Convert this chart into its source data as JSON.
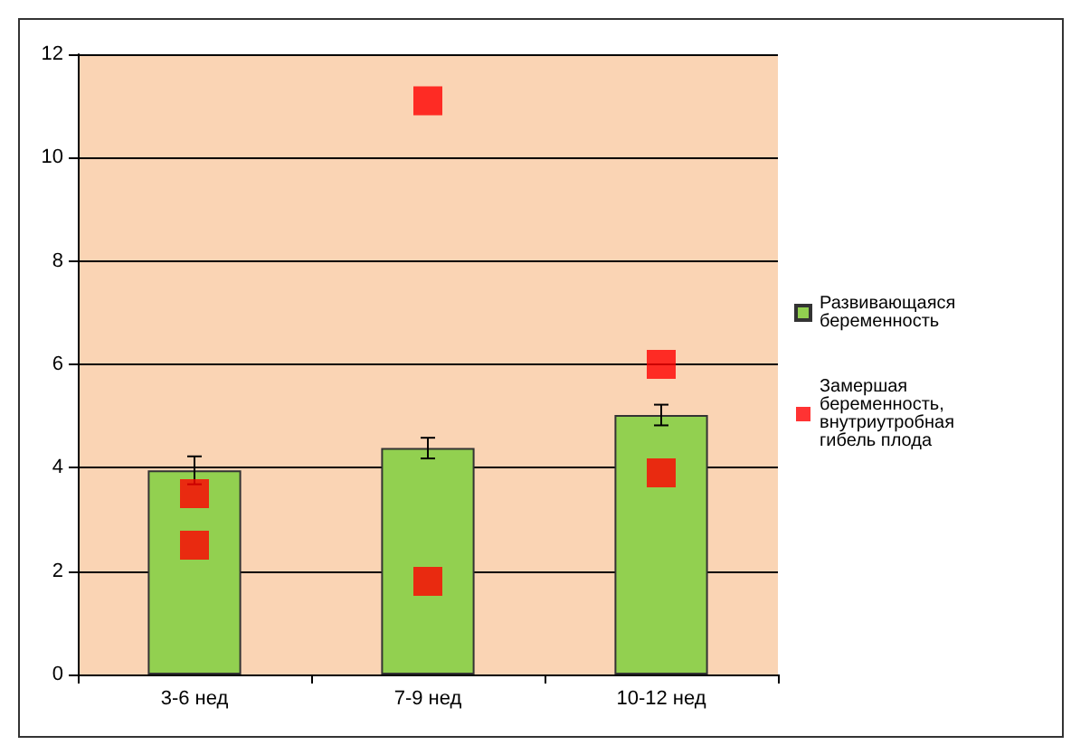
{
  "chart_data": {
    "type": "bar",
    "categories": [
      "3-6 нед",
      "7-9 нед",
      "10-12 нед"
    ],
    "series": [
      {
        "name": "Развивающаяся беременность",
        "color": "#92d050",
        "values": [
          3.95,
          4.38,
          5.02
        ],
        "errors": [
          0.27,
          0.2,
          0.2
        ]
      },
      {
        "type": "scatter",
        "name": "Замершая беременность, внутриутробная гибель плода",
        "color": "#ff0000",
        "x": [
          "3-6 нед",
          "3-6 нед",
          "7-9 нед",
          "7-9 нед",
          "10-12 нед",
          "10-12 нед"
        ],
        "values": [
          3.5,
          2.5,
          11.1,
          1.8,
          6.0,
          3.9
        ],
        "marker": "square"
      }
    ],
    "ylim": [
      0,
      12
    ],
    "yticks": [
      0,
      2,
      4,
      6,
      8,
      10,
      12
    ],
    "grid": "y",
    "legend": "right"
  }
}
